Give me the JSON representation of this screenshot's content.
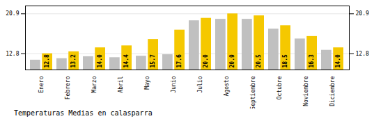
{
  "chart_data": {
    "type": "bar",
    "title": "Temperaturas Medias en calasparra",
    "categories": [
      "Enero",
      "Febrero",
      "Marzo",
      "Abril",
      "Mayo",
      "Junio",
      "Julio",
      "Agosto",
      "Septiembre",
      "Octubre",
      "Noviembre",
      "Diciembre"
    ],
    "series": [
      {
        "color": "#C0C0C0",
        "values": [
          11.5,
          11.8,
          12.2,
          12.0,
          12.3,
          12.6,
          19.5,
          19.8,
          19.8,
          17.8,
          15.8,
          13.5
        ]
      },
      {
        "color": "#F5C800",
        "values": [
          12.8,
          13.2,
          14.0,
          14.4,
          15.7,
          17.6,
          20.0,
          20.9,
          20.5,
          18.5,
          16.3,
          14.0
        ],
        "value_labels": [
          "12.8",
          "13.2",
          "14.0",
          "14.4",
          "15.7",
          "17.6",
          "20.0",
          "20.9",
          "20.5",
          "18.5",
          "16.3",
          "14.0"
        ],
        "data_labels": true
      }
    ],
    "ylim": [
      9.5,
      22.5
    ],
    "yticks": [
      12.8,
      20.9
    ],
    "grid": true
  }
}
